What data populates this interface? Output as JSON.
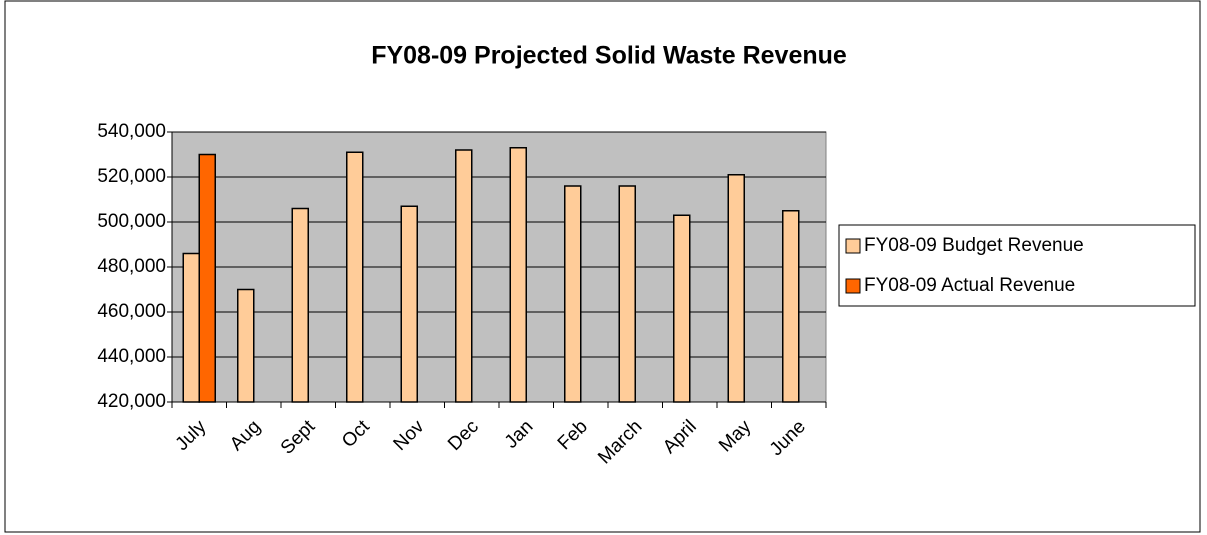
{
  "chart_data": {
    "type": "bar",
    "title": "FY08-09 Projected Solid Waste Revenue",
    "categories": [
      "July",
      "Aug",
      "Sept",
      "Oct",
      "Nov",
      "Dec",
      "Jan",
      "Feb",
      "March",
      "April",
      "May",
      "June"
    ],
    "series": [
      {
        "name": "FY08-09 Budget Revenue",
        "color": "#ffcc99",
        "values": [
          486000,
          470000,
          506000,
          531000,
          507000,
          532000,
          533000,
          516000,
          516000,
          503000,
          521000,
          505000
        ]
      },
      {
        "name": "FY08-09 Actual Revenue",
        "color": "#ff6600",
        "values": [
          530000,
          null,
          null,
          null,
          null,
          null,
          null,
          null,
          null,
          null,
          null,
          null
        ]
      }
    ],
    "ylim": [
      420000,
      540000
    ],
    "yticks": [
      {
        "value": 420000,
        "label": "420,000"
      },
      {
        "value": 440000,
        "label": "440,000"
      },
      {
        "value": 460000,
        "label": "460,000"
      },
      {
        "value": 480000,
        "label": "480,000"
      },
      {
        "value": 500000,
        "label": "500,000"
      },
      {
        "value": 520000,
        "label": "520,000"
      },
      {
        "value": 540000,
        "label": "540,000"
      }
    ],
    "grid": true,
    "legend": "right"
  }
}
